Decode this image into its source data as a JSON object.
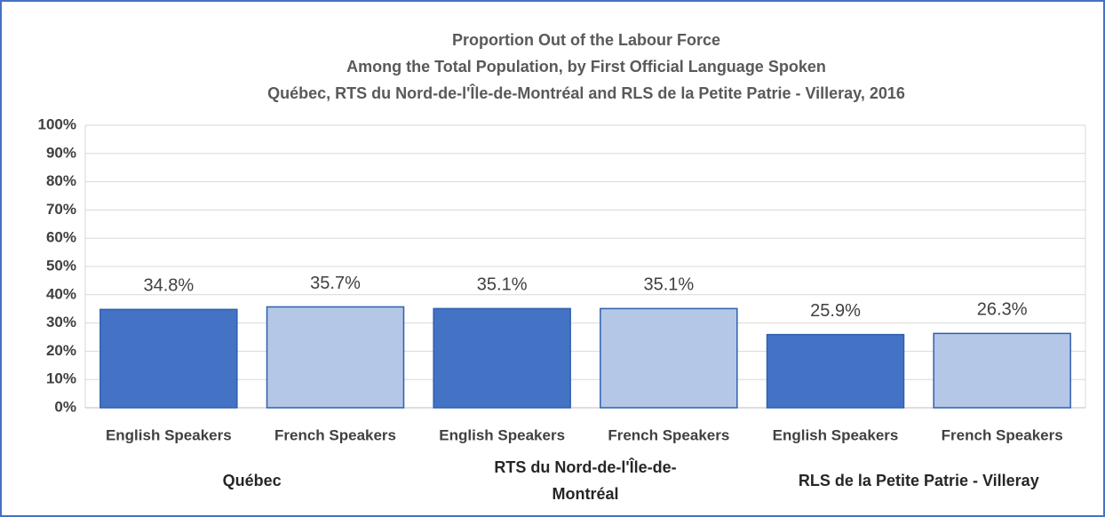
{
  "chart_data": {
    "type": "bar",
    "title_lines": [
      "Proportion Out of the Labour Force",
      "Among the Total Population, by First Official Language Spoken",
      "Québec, RTS du Nord-de-l'Île-de-Montréal and RLS de la Petite Patrie - Villeray, 2016"
    ],
    "categories": [
      "English Speakers",
      "French Speakers",
      "English Speakers",
      "French Speakers",
      "English Speakers",
      "French Speakers"
    ],
    "groups": [
      "Québec",
      "RTS du Nord-de-l'Île-de-Montréal",
      "RLS de la Petite Patrie - Villeray"
    ],
    "values": [
      34.8,
      35.7,
      35.1,
      35.1,
      25.9,
      26.3
    ],
    "value_labels": [
      "34.8%",
      "35.7%",
      "35.1%",
      "35.1%",
      "25.9%",
      "26.3%"
    ],
    "colors": [
      "#4472c4",
      "#b4c7e7",
      "#4472c4",
      "#b4c7e7",
      "#4472c4",
      "#b4c7e7"
    ],
    "ylim": [
      0,
      100
    ],
    "yticks": [
      {
        "value": 0,
        "label": "0%"
      },
      {
        "value": 10,
        "label": "10%"
      },
      {
        "value": 20,
        "label": "20%"
      },
      {
        "value": 30,
        "label": "30%"
      },
      {
        "value": 40,
        "label": "40%"
      },
      {
        "value": 50,
        "label": "50%"
      },
      {
        "value": 60,
        "label": "60%"
      },
      {
        "value": 70,
        "label": "70%"
      },
      {
        "value": 80,
        "label": "80%"
      },
      {
        "value": 90,
        "label": "90%"
      },
      {
        "value": 100,
        "label": "100%"
      }
    ],
    "grid": true
  }
}
